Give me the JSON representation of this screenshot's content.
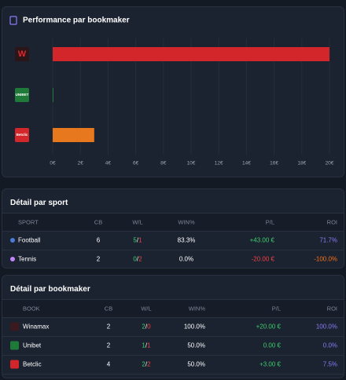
{
  "chart_data": {
    "type": "bar",
    "orientation": "horizontal",
    "title": "Performance par bookmaker",
    "categories": [
      "W",
      "UNIBET",
      "Betclic"
    ],
    "values": [
      20,
      0,
      3
    ],
    "colors": [
      "#d3262a",
      "#1f7a3a",
      "#e8781e"
    ],
    "xlim": [
      0,
      20
    ],
    "xticks": [
      {
        "value": 0,
        "label": "0€"
      },
      {
        "value": 2,
        "label": "2€"
      },
      {
        "value": 4,
        "label": "4€"
      },
      {
        "value": 6,
        "label": "6€"
      },
      {
        "value": 8,
        "label": "8€"
      },
      {
        "value": 10,
        "label": "10€"
      },
      {
        "value": 12,
        "label": "12€"
      },
      {
        "value": 14,
        "label": "14€"
      },
      {
        "value": 16,
        "label": "16€"
      },
      {
        "value": 18,
        "label": "18€"
      },
      {
        "value": 20,
        "label": "20€"
      }
    ],
    "grid": true
  },
  "sport_table": {
    "title": "Détail par sport",
    "columns": [
      "SPORT",
      "CB",
      "W/L",
      "WIN%",
      "P/L",
      "ROI"
    ],
    "rows": [
      {
        "name": "Football",
        "cb": 6,
        "w": 5,
        "l": 1,
        "win": "83.3%",
        "pl": "+43.00 €",
        "roi": "71.7%"
      },
      {
        "name": "Tennis",
        "cb": 2,
        "w": 0,
        "l": 2,
        "win": "0.0%",
        "pl": "-20.00 €",
        "roi": "-100.0%"
      }
    ]
  },
  "book_table": {
    "title": "Détail par bookmaker",
    "columns": [
      "BOOK",
      "CB",
      "W/L",
      "WIN%",
      "P/L",
      "ROI"
    ],
    "rows": [
      {
        "name": "Winamax",
        "cb": 2,
        "w": 2,
        "l": 0,
        "win": "100.0%",
        "pl": "+20.00 €",
        "roi": "100.0%"
      },
      {
        "name": "Unibet",
        "cb": 2,
        "w": 1,
        "l": 1,
        "win": "50.0%",
        "pl": "0.00 €",
        "roi": "0.0%"
      },
      {
        "name": "Betclic",
        "cb": 4,
        "w": 2,
        "l": 2,
        "win": "50.0%",
        "pl": "+3.00 €",
        "roi": "7.5%"
      }
    ]
  }
}
